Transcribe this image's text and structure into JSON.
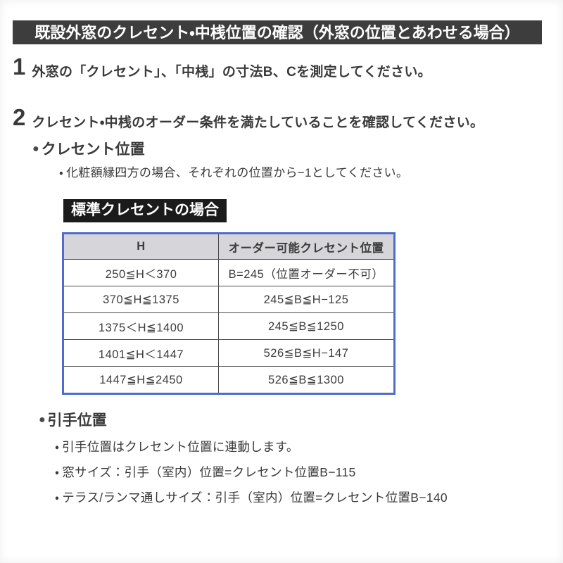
{
  "document": {
    "title": "既設外窓のクレセント・中桟位置の確認（外窓の位置とあわせる場合）"
  },
  "ui": {
    "bullet_glyph": "●",
    "dot_glyph": "・"
  },
  "steps": [
    {
      "number": "1",
      "text": "外窓の「クレセント」、「中桟」の寸法B、Cを測定してください。"
    },
    {
      "number": "2",
      "text": "クレセント・中桟のオーダー条件を満たしていることを確認してください。"
    }
  ],
  "crescent_section": {
    "heading": "クレセント位置",
    "note": "化粧額縁四方の場合、それぞれの位置から−1としてください。",
    "table_label": "標準クレセントの場合",
    "table": {
      "headers": [
        "H",
        "オーダー可能クレセント位置"
      ],
      "rows": [
        [
          "250≦H＜370",
          "B=245（位置オーダー不可）"
        ],
        [
          "370≦H≦1375",
          "245≦B≦H−125"
        ],
        [
          "1375＜H≦1400",
          "245≦B≦1250"
        ],
        [
          "1401≦H＜1447",
          "526≦B≦H−147"
        ],
        [
          "1447≦H≦2450",
          "526≦B≦1300"
        ]
      ]
    }
  },
  "handle_section": {
    "heading": "引手位置",
    "notes": [
      "引手位置はクレセント位置に連動します。",
      "窓サイズ：引手（室内）位置=クレセント位置B−115",
      "テラス/ランマ通しサイズ：引手（室内）位置=クレセント位置B−140"
    ]
  },
  "colors": {
    "title_bar_bg": "#3d3d3d",
    "label_bg": "#1b1b1b",
    "table_border": "#4e6ccb",
    "table_header_bg": "#d6d6da",
    "body_text": "#3a3a3a"
  }
}
